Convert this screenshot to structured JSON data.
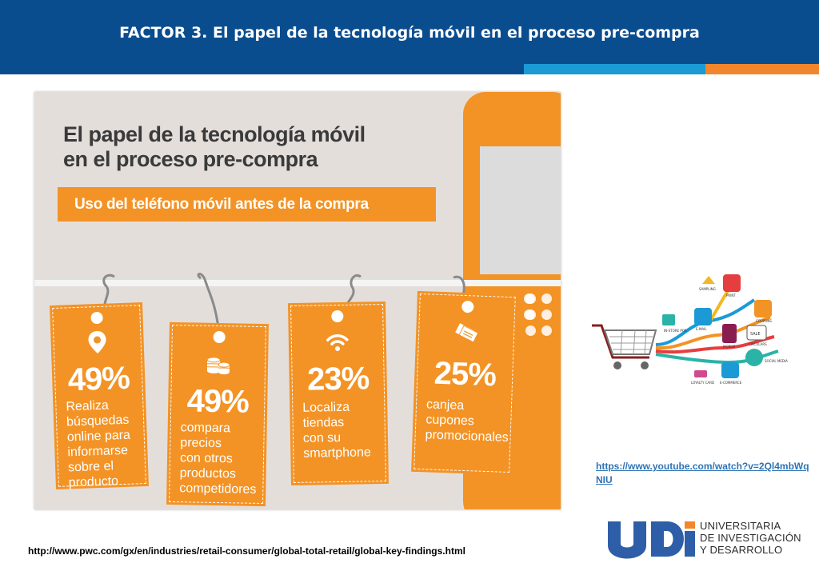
{
  "header": {
    "title": "FACTOR  3. El papel de la tecnología móvil en el proceso pre-compra",
    "color": "#0a4d8f"
  },
  "infographic": {
    "title_line1": "El papel de la tecnología móvil",
    "title_line2": "en el proceso pre-compra",
    "banner": "Uso del teléfono móvil antes de la compra",
    "accent_color": "#f39325",
    "tags": [
      {
        "icon": "location-pin-icon",
        "percent": "49%",
        "lines": [
          "Realiza",
          "búsquedas",
          "online para",
          "informarse",
          "sobre el",
          "producto"
        ]
      },
      {
        "icon": "coins-icon",
        "percent": "49%",
        "lines": [
          "compara",
          "precios",
          "con otros",
          "productos",
          "competidores"
        ]
      },
      {
        "icon": "wifi-icon",
        "percent": "23%",
        "lines": [
          "Localiza",
          "tiendas",
          "con su",
          "smartphone"
        ]
      },
      {
        "icon": "coupon-icon",
        "percent": "25%",
        "lines": [
          "canjea",
          "cupones",
          "promocionales"
        ]
      }
    ]
  },
  "side_image": {
    "icon": "shopping-cart-channels-icon",
    "labels": [
      "IN-STORE POS",
      "E-MAIL",
      "PRINT",
      "COUPONS",
      "MOBILE",
      "SALE",
      "CIRCULARS",
      "LOYALTY CARD",
      "E-COMMERCE",
      "SOCIAL MEDIA",
      "SAMPLING"
    ]
  },
  "links": {
    "youtube": "https://www.youtube.com/watch?v=2Ql4mbWqNIU",
    "source": "http://www.pwc.com/gx/en/industries/retail-consumer/global-total-retail/global-key-findings.html"
  },
  "logo": {
    "mark": "UDI",
    "line1": "UNIVERSITARIA",
    "line2": "DE INVESTIGACIÓN",
    "line3": "Y DESARROLLO"
  }
}
